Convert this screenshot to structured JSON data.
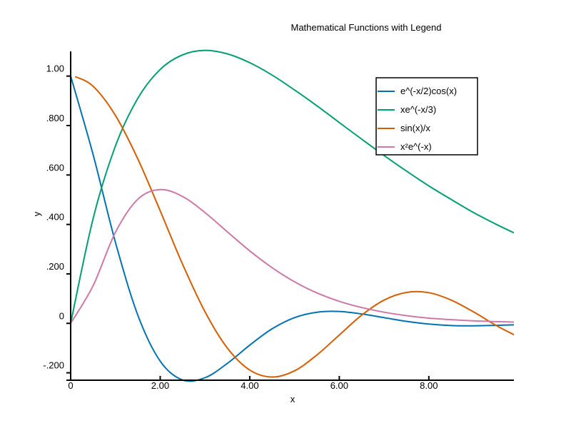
{
  "chart_data": {
    "type": "line",
    "title": "Mathematical Functions with Legend",
    "xlabel": "x",
    "ylabel": "y",
    "xlim": [
      0,
      9.9
    ],
    "ylim": [
      -0.23,
      1.1
    ],
    "xticks": [
      {
        "value": 0,
        "label": "0"
      },
      {
        "value": 2,
        "label": "2.00"
      },
      {
        "value": 4,
        "label": "4.00"
      },
      {
        "value": 6,
        "label": "6.00"
      },
      {
        "value": 8,
        "label": "8.00"
      }
    ],
    "yticks": [
      {
        "value": -0.2,
        "label": "-.200"
      },
      {
        "value": 0,
        "label": "0"
      },
      {
        "value": 0.2,
        "label": ".200"
      },
      {
        "value": 0.4,
        "label": ".400"
      },
      {
        "value": 0.6,
        "label": ".600"
      },
      {
        "value": 0.8,
        "label": ".800"
      },
      {
        "value": 1.0,
        "label": "1.00"
      }
    ],
    "grid": false,
    "legend_position": "top-right",
    "series": [
      {
        "name": "e^(-x/2)cos(x)",
        "color": "#0072b2",
        "x": [
          0,
          0.5,
          1,
          1.5,
          2,
          2.5,
          3,
          3.5,
          4,
          4.5,
          5,
          5.5,
          6,
          6.5,
          7,
          7.5,
          8,
          8.5,
          9,
          9.5,
          9.9
        ],
        "y": [
          1.0,
          0.683,
          0.328,
          0.033,
          -0.153,
          -0.229,
          -0.22,
          -0.162,
          -0.088,
          -0.022,
          0.023,
          0.045,
          0.048,
          0.038,
          0.023,
          0.008,
          -0.003,
          -0.009,
          -0.01,
          -0.008,
          -0.006
        ]
      },
      {
        "name": "xe^(-x/3)",
        "color": "#009e73",
        "x": [
          0,
          0.5,
          1,
          1.5,
          2,
          2.5,
          3,
          3.5,
          4,
          4.5,
          5,
          5.5,
          6,
          6.5,
          7,
          7.5,
          8,
          8.5,
          9,
          9.5,
          9.9
        ],
        "y": [
          0,
          0.423,
          0.717,
          0.91,
          1.027,
          1.086,
          1.104,
          1.09,
          1.054,
          1.004,
          0.944,
          0.88,
          0.812,
          0.745,
          0.679,
          0.616,
          0.556,
          0.501,
          0.448,
          0.401,
          0.366
        ]
      },
      {
        "name": "sin(x)/x",
        "color": "#d55e00",
        "x": [
          0.1,
          0.5,
          1,
          1.5,
          2,
          2.5,
          3,
          3.5,
          4,
          4.5,
          5,
          5.5,
          6,
          6.5,
          7,
          7.5,
          8,
          8.5,
          9,
          9.5,
          9.9
        ],
        "y": [
          0.998,
          0.959,
          0.841,
          0.665,
          0.455,
          0.239,
          0.047,
          -0.1,
          -0.189,
          -0.217,
          -0.192,
          -0.128,
          -0.047,
          0.033,
          0.094,
          0.125,
          0.124,
          0.094,
          0.046,
          -0.008,
          -0.046
        ]
      },
      {
        "name": "x²e^(-x)",
        "color": "#cc79a7",
        "x": [
          0,
          0.5,
          1,
          1.5,
          2,
          2.5,
          3,
          3.5,
          4,
          4.5,
          5,
          5.5,
          6,
          6.5,
          7,
          7.5,
          8,
          8.5,
          9,
          9.5,
          9.9
        ],
        "y": [
          0,
          0.152,
          0.368,
          0.502,
          0.541,
          0.513,
          0.448,
          0.37,
          0.293,
          0.225,
          0.168,
          0.123,
          0.089,
          0.064,
          0.045,
          0.031,
          0.021,
          0.015,
          0.01,
          0.007,
          0.005
        ]
      }
    ]
  }
}
